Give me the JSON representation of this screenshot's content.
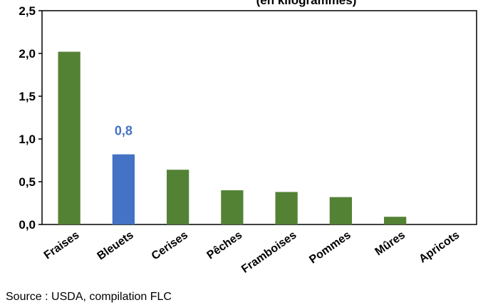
{
  "chart_data": {
    "type": "bar",
    "title": "(en kilogrammes)",
    "categories": [
      "Fraises",
      "Bleuets",
      "Cerises",
      "Pêches",
      "Framboises",
      "Pommes",
      "Mûres",
      "Apricots"
    ],
    "values": [
      2.02,
      0.82,
      0.64,
      0.4,
      0.38,
      0.32,
      0.09,
      0.0
    ],
    "ylim": [
      0,
      2.5
    ],
    "yticks": [
      "0,0",
      "0,5",
      "1,0",
      "1,5",
      "2,0",
      "2,5"
    ],
    "grid": false,
    "legend": "none",
    "highlight": {
      "category": "Bleuets",
      "label": "0,8"
    },
    "colors": {
      "bar": "#548235",
      "highlight": "#4472C4",
      "axis": "#000000"
    }
  },
  "source": "Source : USDA, compilation FLC"
}
